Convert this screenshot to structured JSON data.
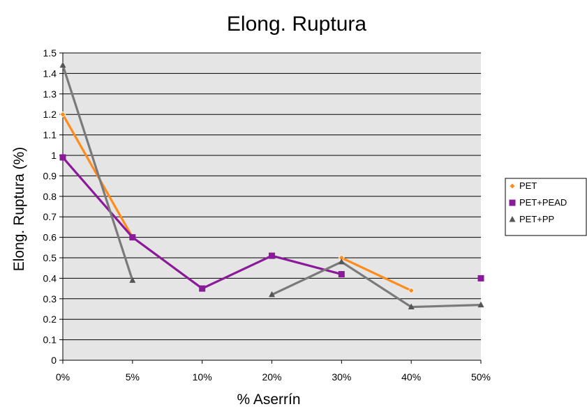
{
  "chart_data": {
    "type": "line",
    "title": "Elong. Ruptura",
    "xlabel": "% Aserrín",
    "ylabel": "Elong. Ruptura (%)",
    "categories": [
      "0%",
      "5%",
      "10%",
      "20%",
      "30%",
      "40%",
      "50%"
    ],
    "ylim": [
      0,
      1.5
    ],
    "yticks": [
      0,
      0.1,
      0.2,
      0.3,
      0.4,
      0.5,
      0.6,
      0.7,
      0.8,
      0.9,
      1,
      1.1,
      1.2,
      1.3,
      1.4,
      1.5
    ],
    "ytick_labels": [
      "0",
      "0.1",
      "0.2",
      "0.3",
      "0.4",
      "0.5",
      "0.6",
      "0.7",
      "0.8",
      "0.9",
      "1",
      "1.1",
      "1.2",
      "1.3",
      "1.4",
      "1.5"
    ],
    "grid": true,
    "legend_position": "right",
    "series": [
      {
        "name": "PET",
        "color": "#ff8c1a",
        "marker": "diamond",
        "marker_color": "#ff8c1a",
        "values": [
          1.2,
          0.6,
          null,
          null,
          0.5,
          0.34,
          null
        ]
      },
      {
        "name": "PET+PEAD",
        "color": "#8b1a9a",
        "marker": "square",
        "marker_color": "#8b1a9a",
        "values": [
          0.99,
          0.6,
          0.35,
          0.51,
          0.42,
          null,
          0.4
        ]
      },
      {
        "name": "PET+PP",
        "color": "#7a7a7a",
        "marker": "triangle",
        "marker_color": "#555555",
        "values": [
          1.44,
          0.39,
          null,
          0.32,
          0.48,
          0.26,
          0.27
        ]
      }
    ]
  }
}
